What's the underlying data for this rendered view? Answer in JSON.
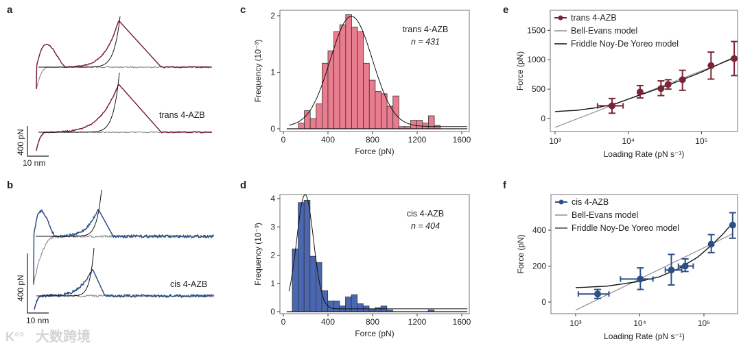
{
  "panels": {
    "a": {
      "letter": "a",
      "label": "trans 4-AZB",
      "scale_force": "400 pN",
      "scale_dist": "10 nm"
    },
    "b": {
      "letter": "b",
      "label": "cis 4-AZB",
      "scale_force": "400 pN",
      "scale_dist": "10 nm"
    },
    "c": {
      "letter": "c"
    },
    "d": {
      "letter": "d"
    },
    "e": {
      "letter": "e"
    },
    "f": {
      "letter": "f"
    }
  },
  "watermark": "大数跨境",
  "colors": {
    "trans": "#7a2436",
    "trans_hist": "#e97c8e",
    "trans_scatter": "#f2a3b0",
    "cis": "#2c4f86",
    "cis_hist": "#4a68b2",
    "cis_scatter": "#a9d5f2",
    "gray": "#8a8a8a",
    "fit": "#111111"
  },
  "chart_data": [
    {
      "id": "c",
      "type": "bar",
      "title": "",
      "annotation": [
        "trans 4-AZB",
        "n = 431"
      ],
      "xlabel": "Force (pN)",
      "ylabel": "Frequency (10⁻³)",
      "xlim": [
        0,
        1600
      ],
      "ylim": [
        0,
        2
      ],
      "xticks": [
        "0",
        "400",
        "800",
        "1200",
        "1600"
      ],
      "yticks": [
        "0",
        "1",
        "2"
      ],
      "bin_start": 135,
      "bin_width": 53,
      "values": [
        0.1,
        0.32,
        0.18,
        0.44,
        1.16,
        1.38,
        1.72,
        1.84,
        2.02,
        1.8,
        1.72,
        1.16,
        0.86,
        0.66,
        0.62,
        0.4,
        0.58,
        0.04,
        0.04,
        0.15,
        0.15,
        0.1,
        0.23,
        0.06
      ],
      "fit": {
        "type": "gaussian",
        "mean": 610,
        "sigma": 189,
        "peak": 1.95,
        "offset": 0.04
      }
    },
    {
      "id": "d",
      "type": "bar",
      "title": "",
      "annotation": [
        "cis 4-AZB",
        "n = 404"
      ],
      "xlabel": "Force (pN)",
      "ylabel": "Frequency (10⁻³)",
      "xlim": [
        0,
        1600
      ],
      "ylim": [
        0,
        4
      ],
      "xticks": [
        "0",
        "400",
        "800",
        "1200",
        "1600"
      ],
      "yticks": [
        "0",
        "1",
        "2",
        "3",
        "4"
      ],
      "bin_start": 80,
      "bin_width": 53,
      "values": [
        2.22,
        3.86,
        3.94,
        1.96,
        1.74,
        0.74,
        0.38,
        0.38,
        0.2,
        0.52,
        0.6,
        0.28,
        0.2,
        0.08,
        0.14,
        0.2,
        0.06,
        0,
        0,
        0,
        0,
        0,
        0,
        0.06
      ],
      "fit": {
        "type": "gaussian",
        "mean": 195,
        "sigma": 75,
        "peak": 4.05,
        "offset": 0.1
      }
    },
    {
      "id": "e",
      "type": "scatter",
      "xscale": "log",
      "xlabel": "Loading Rate (pN s⁻¹)",
      "ylabel": "Force (pN)",
      "xlim": [
        1000,
        300000
      ],
      "ylim": [
        -250,
        1800
      ],
      "xticks": [
        "10³",
        "10⁴",
        "10⁵"
      ],
      "yticks": [
        "0",
        "500",
        "1000",
        "1500"
      ],
      "legend": [
        "trans 4-AZB",
        "Bell-Evans model",
        "Friddle Noy-De Yoreo model"
      ],
      "legend_position": "top-left",
      "points": [
        {
          "x": 6000,
          "y": 215,
          "xlo": 3800,
          "xhi": 8500,
          "ylo": 90,
          "yhi": 340
        },
        {
          "x": 14500,
          "y": 450,
          "xlo": 14500,
          "xhi": 14500,
          "ylo": 350,
          "yhi": 560
        },
        {
          "x": 28000,
          "y": 510,
          "xlo": 28000,
          "xhi": 28000,
          "ylo": 390,
          "yhi": 640
        },
        {
          "x": 35000,
          "y": 580,
          "xlo": 35000,
          "xhi": 35000,
          "ylo": 500,
          "yhi": 660
        },
        {
          "x": 55000,
          "y": 660,
          "xlo": 55000,
          "xhi": 55000,
          "ylo": 480,
          "yhi": 820
        },
        {
          "x": 135000,
          "y": 900,
          "xlo": 135000,
          "xhi": 135000,
          "ylo": 670,
          "yhi": 1130
        },
        {
          "x": 280000,
          "y": 1020,
          "xlo": 280000,
          "xhi": 280000,
          "ylo": 730,
          "yhi": 1310
        }
      ],
      "bell_evans": [
        [
          1000,
          -150
        ],
        [
          280000,
          1025
        ]
      ],
      "friddle": [
        [
          1000,
          118
        ],
        [
          2000,
          140
        ],
        [
          4000,
          190
        ],
        [
          7000,
          260
        ],
        [
          10000,
          330
        ],
        [
          20000,
          460
        ],
        [
          50000,
          640
        ],
        [
          100000,
          790
        ],
        [
          280000,
          1040
        ]
      ]
    },
    {
      "id": "f",
      "type": "scatter",
      "xscale": "log",
      "xlabel": "Loading Rate (pN s⁻¹)",
      "ylabel": "Force (pN)",
      "xlim": [
        450,
        320000
      ],
      "ylim": [
        -60,
        580
      ],
      "xticks": [
        "10³",
        "10⁴",
        "10⁵"
      ],
      "yticks": [
        "0",
        "200",
        "400"
      ],
      "legend": [
        "cis 4-AZB",
        "Bell-Evans model",
        "Friddle Noy-De Yoreo model"
      ],
      "legend_position": "top-left",
      "points": [
        {
          "x": 2200,
          "y": 45,
          "xlo": 1100,
          "xhi": 3300,
          "ylo": 20,
          "yhi": 70
        },
        {
          "x": 10200,
          "y": 128,
          "xlo": 5000,
          "xhi": 16000,
          "ylo": 70,
          "yhi": 190
        },
        {
          "x": 31000,
          "y": 178,
          "xlo": 25000,
          "xhi": 45000,
          "ylo": 95,
          "yhi": 265
        },
        {
          "x": 51000,
          "y": 200,
          "xlo": 40000,
          "xhi": 68000,
          "ylo": 170,
          "yhi": 240
        },
        {
          "x": 130000,
          "y": 322,
          "xlo": 130000,
          "xhi": 130000,
          "ylo": 275,
          "yhi": 375
        },
        {
          "x": 280000,
          "y": 428,
          "xlo": 280000,
          "xhi": 280000,
          "ylo": 355,
          "yhi": 497
        }
      ],
      "bell_evans": [
        [
          1000,
          -45
        ],
        [
          280000,
          380
        ]
      ],
      "friddle": [
        [
          1000,
          80
        ],
        [
          3000,
          88
        ],
        [
          10000,
          115
        ],
        [
          20000,
          140
        ],
        [
          40000,
          185
        ],
        [
          80000,
          250
        ],
        [
          130000,
          315
        ],
        [
          200000,
          380
        ],
        [
          280000,
          440
        ]
      ]
    }
  ]
}
